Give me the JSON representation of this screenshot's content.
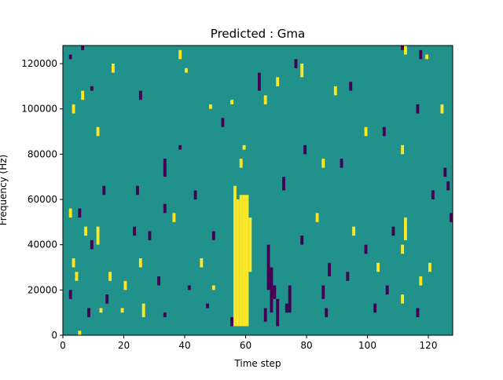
{
  "chart_data": {
    "type": "heatmap",
    "title": "Predicted : Gma",
    "xlabel": "Time step",
    "ylabel": "Frequency (Hz)",
    "xlim": [
      0,
      128
    ],
    "ylim": [
      0,
      128000
    ],
    "x_ticks": [
      0,
      20,
      40,
      60,
      80,
      100,
      120
    ],
    "y_ticks": [
      0,
      20000,
      40000,
      60000,
      80000,
      100000,
      120000
    ],
    "x_tick_labels": [
      "0",
      "20",
      "40",
      "60",
      "80",
      "100",
      "120"
    ],
    "y_tick_labels": [
      "0",
      "20000",
      "40000",
      "60000",
      "80000",
      "100000",
      "120000"
    ],
    "grid": false,
    "legend": "none",
    "colors": {
      "background": "#21918c",
      "positive": "#fde725",
      "negative": "#440154"
    },
    "background_value": 0,
    "cell_size": {
      "time": 1,
      "frequency": 2000
    },
    "cells": [
      {
        "t": 56,
        "f0": 4000,
        "f1": 66000,
        "v": 1
      },
      {
        "t": 57,
        "f0": 4000,
        "f1": 60000,
        "v": 1
      },
      {
        "t": 58,
        "f0": 4000,
        "f1": 62000,
        "v": 1
      },
      {
        "t": 59,
        "f0": 4000,
        "f1": 62000,
        "v": 1
      },
      {
        "t": 60,
        "f0": 4000,
        "f1": 62000,
        "v": 1
      },
      {
        "t": 61,
        "f0": 28000,
        "f1": 52000,
        "v": 1
      },
      {
        "t": 58,
        "f0": 74000,
        "f1": 78000,
        "v": 1
      },
      {
        "t": 59,
        "f0": 82000,
        "f1": 84000,
        "v": 1
      },
      {
        "t": 67,
        "f0": 20000,
        "f1": 40000,
        "v": -1
      },
      {
        "t": 68,
        "f0": 10000,
        "f1": 30000,
        "v": -1
      },
      {
        "t": 69,
        "f0": 16000,
        "f1": 22000,
        "v": -1
      },
      {
        "t": 70,
        "f0": 4000,
        "f1": 16000,
        "v": -1
      },
      {
        "t": 66,
        "f0": 6000,
        "f1": 12000,
        "v": -1
      },
      {
        "t": 74,
        "f0": 10000,
        "f1": 22000,
        "v": -1
      },
      {
        "t": 73,
        "f0": 10000,
        "f1": 14000,
        "v": -1
      },
      {
        "t": 55,
        "f0": 4000,
        "f1": 8000,
        "v": -1
      },
      {
        "t": 5,
        "f0": 0,
        "f1": 2000,
        "v": 1
      },
      {
        "t": 6,
        "f0": 126000,
        "f1": 128000,
        "v": -1
      },
      {
        "t": 4,
        "f0": 24000,
        "f1": 28000,
        "v": 1
      },
      {
        "t": 8,
        "f0": 8000,
        "f1": 12000,
        "v": -1
      },
      {
        "t": 12,
        "f0": 10000,
        "f1": 12000,
        "v": 1
      },
      {
        "t": 14,
        "f0": 14000,
        "f1": 18000,
        "v": -1
      },
      {
        "t": 19,
        "f0": 10000,
        "f1": 12000,
        "v": 1
      },
      {
        "t": 26,
        "f0": 8000,
        "f1": 14000,
        "v": 1
      },
      {
        "t": 33,
        "f0": 8000,
        "f1": 10000,
        "v": -1
      },
      {
        "t": 41,
        "f0": 20000,
        "f1": 22000,
        "v": -1
      },
      {
        "t": 49,
        "f0": 20000,
        "f1": 22000,
        "v": 1
      },
      {
        "t": 43,
        "f0": 60000,
        "f1": 64000,
        "v": -1
      },
      {
        "t": 47,
        "f0": 12000,
        "f1": 14000,
        "v": -1
      },
      {
        "t": 25,
        "f0": 30000,
        "f1": 34000,
        "v": 1
      },
      {
        "t": 31,
        "f0": 22000,
        "f1": 26000,
        "v": -1
      },
      {
        "t": 36,
        "f0": 50000,
        "f1": 54000,
        "v": 1
      },
      {
        "t": 23,
        "f0": 44000,
        "f1": 48000,
        "v": -1
      },
      {
        "t": 11,
        "f0": 40000,
        "f1": 48000,
        "v": 1
      },
      {
        "t": 9,
        "f0": 38000,
        "f1": 42000,
        "v": -1
      },
      {
        "t": 13,
        "f0": 62000,
        "f1": 66000,
        "v": -1
      },
      {
        "t": 24,
        "f0": 62000,
        "f1": 66000,
        "v": -1
      },
      {
        "t": 33,
        "f0": 70000,
        "f1": 78000,
        "v": -1
      },
      {
        "t": 38,
        "f0": 82000,
        "f1": 84000,
        "v": -1
      },
      {
        "t": 40,
        "f0": 116000,
        "f1": 118000,
        "v": 1
      },
      {
        "t": 38,
        "f0": 122000,
        "f1": 126000,
        "v": 1
      },
      {
        "t": 16,
        "f0": 116000,
        "f1": 120000,
        "v": 1
      },
      {
        "t": 25,
        "f0": 104000,
        "f1": 108000,
        "v": -1
      },
      {
        "t": 6,
        "f0": 104000,
        "f1": 108000,
        "v": 1
      },
      {
        "t": 2,
        "f0": 122000,
        "f1": 124000,
        "v": -1
      },
      {
        "t": 3,
        "f0": 98000,
        "f1": 102000,
        "v": 1
      },
      {
        "t": 9,
        "f0": 108000,
        "f1": 110000,
        "v": -1
      },
      {
        "t": 11,
        "f0": 88000,
        "f1": 92000,
        "v": 1
      },
      {
        "t": 48,
        "f0": 100000,
        "f1": 102000,
        "v": 1
      },
      {
        "t": 52,
        "f0": 92000,
        "f1": 96000,
        "v": -1
      },
      {
        "t": 55,
        "f0": 102000,
        "f1": 104000,
        "v": 1
      },
      {
        "t": 64,
        "f0": 108000,
        "f1": 116000,
        "v": -1
      },
      {
        "t": 66,
        "f0": 102000,
        "f1": 106000,
        "v": 1
      },
      {
        "t": 70,
        "f0": 110000,
        "f1": 114000,
        "v": 1
      },
      {
        "t": 72,
        "f0": 64000,
        "f1": 70000,
        "v": -1
      },
      {
        "t": 79,
        "f0": 80000,
        "f1": 84000,
        "v": -1
      },
      {
        "t": 85,
        "f0": 74000,
        "f1": 78000,
        "v": 1
      },
      {
        "t": 91,
        "f0": 74000,
        "f1": 78000,
        "v": -1
      },
      {
        "t": 99,
        "f0": 88000,
        "f1": 92000,
        "v": 1
      },
      {
        "t": 105,
        "f0": 88000,
        "f1": 92000,
        "v": -1
      },
      {
        "t": 111,
        "f0": 80000,
        "f1": 84000,
        "v": 1
      },
      {
        "t": 116,
        "f0": 98000,
        "f1": 102000,
        "v": -1
      },
      {
        "t": 124,
        "f0": 98000,
        "f1": 102000,
        "v": 1
      },
      {
        "t": 125,
        "f0": 70000,
        "f1": 74000,
        "v": -1
      },
      {
        "t": 126,
        "f0": 64000,
        "f1": 68000,
        "v": -1
      },
      {
        "t": 127,
        "f0": 50000,
        "f1": 54000,
        "v": -1
      },
      {
        "t": 120,
        "f0": 28000,
        "f1": 32000,
        "v": 1
      },
      {
        "t": 121,
        "f0": 60000,
        "f1": 64000,
        "v": -1
      },
      {
        "t": 112,
        "f0": 42000,
        "f1": 52000,
        "v": 1
      },
      {
        "t": 111,
        "f0": 36000,
        "f1": 40000,
        "v": 1
      },
      {
        "t": 108,
        "f0": 44000,
        "f1": 48000,
        "v": -1
      },
      {
        "t": 103,
        "f0": 28000,
        "f1": 32000,
        "v": 1
      },
      {
        "t": 99,
        "f0": 36000,
        "f1": 40000,
        "v": -1
      },
      {
        "t": 93,
        "f0": 24000,
        "f1": 28000,
        "v": -1
      },
      {
        "t": 87,
        "f0": 26000,
        "f1": 32000,
        "v": -1
      },
      {
        "t": 85,
        "f0": 16000,
        "f1": 22000,
        "v": -1
      },
      {
        "t": 86,
        "f0": 8000,
        "f1": 12000,
        "v": -1
      },
      {
        "t": 102,
        "f0": 10000,
        "f1": 14000,
        "v": -1
      },
      {
        "t": 111,
        "f0": 14000,
        "f1": 18000,
        "v": 1
      },
      {
        "t": 116,
        "f0": 8000,
        "f1": 12000,
        "v": -1
      },
      {
        "t": 117,
        "f0": 22000,
        "f1": 26000,
        "v": 1
      },
      {
        "t": 106,
        "f0": 18000,
        "f1": 22000,
        "v": -1
      },
      {
        "t": 78,
        "f0": 40000,
        "f1": 44000,
        "v": -1
      },
      {
        "t": 83,
        "f0": 50000,
        "f1": 54000,
        "v": 1
      },
      {
        "t": 95,
        "f0": 44000,
        "f1": 48000,
        "v": 1
      },
      {
        "t": 112,
        "f0": 124000,
        "f1": 128000,
        "v": 1
      },
      {
        "t": 111,
        "f0": 126000,
        "f1": 128000,
        "v": -1
      },
      {
        "t": 117,
        "f0": 122000,
        "f1": 126000,
        "v": -1
      },
      {
        "t": 119,
        "f0": 122000,
        "f1": 124000,
        "v": 1
      },
      {
        "t": 94,
        "f0": 108000,
        "f1": 112000,
        "v": -1
      },
      {
        "t": 89,
        "f0": 106000,
        "f1": 110000,
        "v": 1
      },
      {
        "t": 78,
        "f0": 114000,
        "f1": 120000,
        "v": 1
      },
      {
        "t": 76,
        "f0": 118000,
        "f1": 122000,
        "v": -1
      },
      {
        "t": 2,
        "f0": 52000,
        "f1": 56000,
        "v": 1
      },
      {
        "t": 5,
        "f0": 52000,
        "f1": 56000,
        "v": -1
      },
      {
        "t": 7,
        "f0": 44000,
        "f1": 48000,
        "v": 1
      },
      {
        "t": 3,
        "f0": 30000,
        "f1": 34000,
        "v": 1
      },
      {
        "t": 2,
        "f0": 16000,
        "f1": 20000,
        "v": -1
      },
      {
        "t": 15,
        "f0": 24000,
        "f1": 28000,
        "v": 1
      },
      {
        "t": 20,
        "f0": 20000,
        "f1": 24000,
        "v": 1
      },
      {
        "t": 28,
        "f0": 42000,
        "f1": 46000,
        "v": -1
      },
      {
        "t": 33,
        "f0": 54000,
        "f1": 58000,
        "v": -1
      },
      {
        "t": 45,
        "f0": 30000,
        "f1": 34000,
        "v": 1
      },
      {
        "t": 49,
        "f0": 42000,
        "f1": 46000,
        "v": -1
      }
    ]
  }
}
